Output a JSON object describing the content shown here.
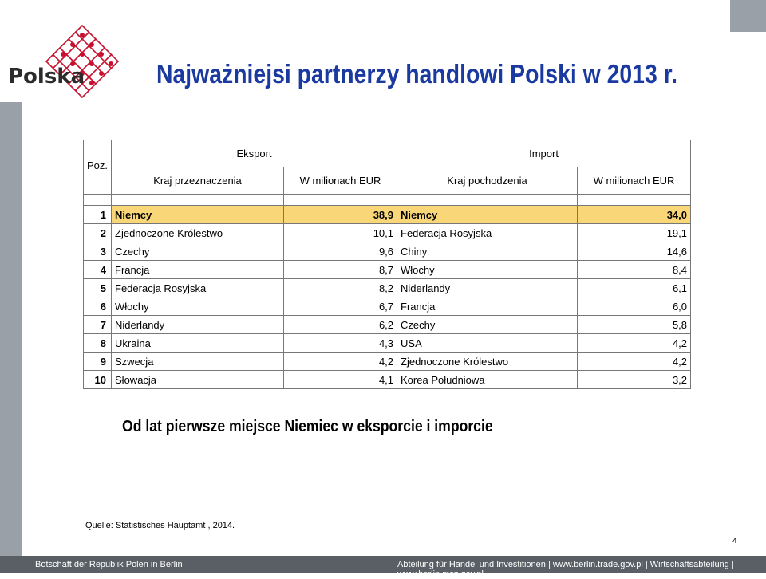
{
  "logo": {
    "brand": "Polska"
  },
  "title": "Najważniejsi partnerzy handlowi Polski w 2013 r.",
  "table": {
    "corner": "Poz.",
    "export_header": "Eksport",
    "import_header": "Import",
    "sub_headers": [
      "Kraj przeznaczenia",
      "W milionach EUR",
      "Kraj pochodzenia",
      "W milionach EUR"
    ],
    "rows": [
      {
        "rank": "1",
        "exp_country": "Niemcy",
        "exp_value": "38,9",
        "imp_country": "Niemcy",
        "imp_value": "34,0"
      },
      {
        "rank": "2",
        "exp_country": "Zjednoczone Królestwo",
        "exp_value": "10,1",
        "imp_country": "Federacja Rosyjska",
        "imp_value": "19,1"
      },
      {
        "rank": "3",
        "exp_country": "Czechy",
        "exp_value": "9,6",
        "imp_country": "Chiny",
        "imp_value": "14,6"
      },
      {
        "rank": "4",
        "exp_country": "Francja",
        "exp_value": "8,7",
        "imp_country": "Włochy",
        "imp_value": "8,4"
      },
      {
        "rank": "5",
        "exp_country": "Federacja Rosyjska",
        "exp_value": "8,2",
        "imp_country": "Niderlandy",
        "imp_value": "6,1"
      },
      {
        "rank": "6",
        "exp_country": "Włochy",
        "exp_value": "6,7",
        "imp_country": "Francja",
        "imp_value": "6,0"
      },
      {
        "rank": "7",
        "exp_country": "Niderlandy",
        "exp_value": "6,2",
        "imp_country": "Czechy",
        "imp_value": "5,8"
      },
      {
        "rank": "8",
        "exp_country": "Ukraina",
        "exp_value": "4,3",
        "imp_country": "USA",
        "imp_value": "4,2"
      },
      {
        "rank": "9",
        "exp_country": "Szwecja",
        "exp_value": "4,2",
        "imp_country": "Zjednoczone Królestwo",
        "imp_value": "4,2"
      },
      {
        "rank": "10",
        "exp_country": "Słowacja",
        "exp_value": "4,1",
        "imp_country": "Korea Południowa",
        "imp_value": "3,2"
      }
    ]
  },
  "subtitle": "Od lat pierwsze miejsce Niemiec w eksporcie i imporcie",
  "source": "Quelle: Statistisches Hauptamt , 2014.",
  "page_number": "4",
  "footer": {
    "left": "Botschaft der Republik Polen in Berlin",
    "right": "Abteilung für Handel und Investitionen | www.berlin.trade.gov.pl | Wirtschaftsabteilung | www.berlin.msz.gov.pl"
  },
  "colors": {
    "title": "#1a3aa0",
    "highlight_row": "#f9d779",
    "band": "#9aa0a8",
    "footer": "#5a5f66",
    "logo_accent": "#c8102e"
  }
}
